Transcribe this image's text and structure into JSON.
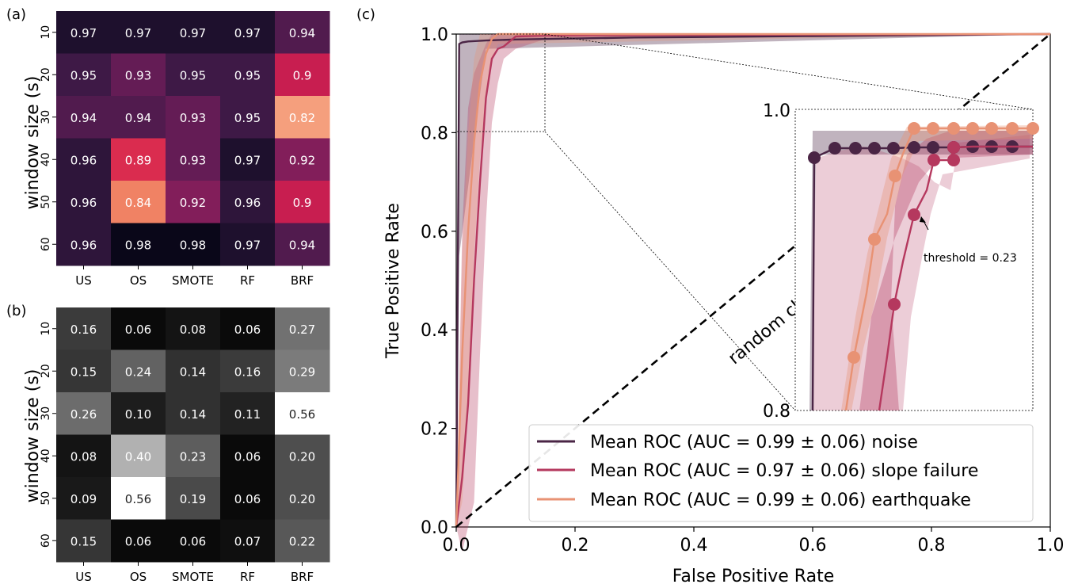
{
  "panels": {
    "a": {
      "label": "(a)",
      "ylabel": "window size (s)",
      "columns": [
        "US",
        "OS",
        "SMOTE",
        "RF",
        "BRF"
      ],
      "rows": [
        "10",
        "20",
        "30",
        "40",
        "50",
        "60"
      ],
      "values": [
        [
          0.97,
          0.97,
          0.97,
          0.97,
          0.94
        ],
        [
          0.95,
          0.93,
          0.95,
          0.95,
          0.9
        ],
        [
          0.94,
          0.94,
          0.93,
          0.95,
          0.82
        ],
        [
          0.96,
          0.89,
          0.93,
          0.97,
          0.92
        ],
        [
          0.96,
          0.84,
          0.92,
          0.96,
          0.9
        ],
        [
          0.96,
          0.98,
          0.98,
          0.97,
          0.94
        ]
      ]
    },
    "b": {
      "label": "(b)",
      "ylabel": "window size (s)",
      "columns": [
        "US",
        "OS",
        "SMOTE",
        "RF",
        "BRF"
      ],
      "rows": [
        "10",
        "20",
        "30",
        "40",
        "50",
        "60"
      ],
      "values": [
        [
          "0.16",
          "0.06",
          "0.08",
          "0.06",
          "0.27"
        ],
        [
          "0.15",
          "0.24",
          "0.14",
          "0.16",
          "0.29"
        ],
        [
          "0.26",
          "0.10",
          "0.14",
          "0.11",
          "0.56"
        ],
        [
          "0.08",
          "0.40",
          "0.23",
          "0.06",
          "0.20"
        ],
        [
          "0.09",
          "0.56",
          "0.19",
          "0.06",
          "0.20"
        ],
        [
          "0.15",
          "0.06",
          "0.06",
          "0.07",
          "0.22"
        ]
      ]
    },
    "c": {
      "label": "(c)",
      "xlabel": "False Positive Rate",
      "ylabel": "True Positive Rate",
      "xticks": [
        "0.0",
        "0.2",
        "0.4",
        "0.6",
        "0.8",
        "1.0"
      ],
      "yticks": [
        "0.0",
        "0.2",
        "0.4",
        "0.6",
        "0.8",
        "1.0"
      ],
      "diagonal_label": "random classifier",
      "inset_yticks": [
        "1.0",
        "0.8"
      ],
      "annotation": "threshold = 0.23",
      "legend": [
        "Mean ROC (AUC = 0.99 ± 0.06) noise",
        "Mean ROC (AUC = 0.97 ± 0.06) slope failure",
        "Mean ROC (AUC = 0.99 ± 0.06) earthquake"
      ]
    }
  },
  "colors": {
    "noise": "#4a2545",
    "slope": "#b5385e",
    "quake": "#e89274",
    "grid_text_light": "#ffffff",
    "grid_text_dark": "#222222"
  },
  "chart_data": [
    {
      "type": "heatmap",
      "panel": "a",
      "xlabel": "",
      "ylabel": "window size (s)",
      "x_categories": [
        "US",
        "OS",
        "SMOTE",
        "RF",
        "BRF"
      ],
      "y_categories": [
        "10",
        "20",
        "30",
        "40",
        "50",
        "60"
      ],
      "values": [
        [
          0.97,
          0.97,
          0.97,
          0.97,
          0.94
        ],
        [
          0.95,
          0.93,
          0.95,
          0.95,
          0.9
        ],
        [
          0.94,
          0.94,
          0.93,
          0.95,
          0.82
        ],
        [
          0.96,
          0.89,
          0.93,
          0.97,
          0.92
        ],
        [
          0.96,
          0.84,
          0.92,
          0.96,
          0.9
        ],
        [
          0.96,
          0.98,
          0.98,
          0.97,
          0.94
        ]
      ],
      "colormap": "rocket"
    },
    {
      "type": "heatmap",
      "panel": "b",
      "xlabel": "",
      "ylabel": "window size (s)",
      "x_categories": [
        "US",
        "OS",
        "SMOTE",
        "RF",
        "BRF"
      ],
      "y_categories": [
        "10",
        "20",
        "30",
        "40",
        "50",
        "60"
      ],
      "values": [
        [
          0.16,
          0.06,
          0.08,
          0.06,
          0.27
        ],
        [
          0.15,
          0.24,
          0.14,
          0.16,
          0.29
        ],
        [
          0.26,
          0.1,
          0.14,
          0.11,
          0.56
        ],
        [
          0.08,
          0.4,
          0.23,
          0.06,
          0.2
        ],
        [
          0.09,
          0.56,
          0.19,
          0.06,
          0.2
        ],
        [
          0.15,
          0.06,
          0.06,
          0.07,
          0.22
        ]
      ],
      "colormap": "gray"
    },
    {
      "type": "line",
      "panel": "c",
      "xlabel": "False Positive Rate",
      "ylabel": "True Positive Rate",
      "xlim": [
        0,
        1
      ],
      "ylim": [
        0,
        1
      ],
      "legend_position": "lower-right",
      "series": [
        {
          "name": "Mean ROC (AUC = 0.99 ± 0.06) noise",
          "x": [
            0,
            0.005,
            0.01,
            0.02,
            0.05,
            0.1,
            0.3,
            0.6,
            0.8,
            1.0
          ],
          "y": [
            0,
            0.98,
            0.983,
            0.985,
            0.987,
            0.989,
            0.993,
            0.996,
            0.998,
            1.0
          ]
        },
        {
          "name": "Mean ROC (AUC = 0.97 ± 0.06) slope failure",
          "x": [
            0,
            0.01,
            0.02,
            0.03,
            0.04,
            0.05,
            0.06,
            0.07,
            0.08,
            0.09,
            0.1,
            0.15,
            0.3,
            0.6,
            1.0
          ],
          "y": [
            0,
            0.1,
            0.25,
            0.5,
            0.7,
            0.87,
            0.95,
            0.97,
            0.975,
            0.985,
            0.995,
            0.997,
            0.998,
            0.999,
            1.0
          ]
        },
        {
          "name": "Mean ROC (AUC = 0.99 ± 0.06) earthquake",
          "x": [
            0,
            0.01,
            0.02,
            0.03,
            0.04,
            0.05,
            0.06,
            0.07,
            0.1,
            0.3,
            0.6,
            1.0
          ],
          "y": [
            0,
            0.35,
            0.6,
            0.78,
            0.9,
            0.96,
            0.99,
            1.0,
            1.0,
            1.0,
            1.0,
            1.0
          ]
        },
        {
          "name": "",
          "x": [
            0,
            1
          ],
          "y": [
            0,
            1
          ]
        }
      ],
      "inset": {
        "xlim": [
          0,
          0.15
        ],
        "ylim": [
          0.8,
          1.0
        ],
        "series": [
          {
            "x": [
              0,
              0.01,
              0.02,
              0.03,
              0.04,
              0.05,
              0.06,
              0.07,
              0.08,
              0.09,
              0.1,
              0.11,
              0.12,
              0.13
            ],
            "y": [
              0.984,
              0.986,
              0.986,
              0.986,
              0.986,
              0.986,
              0.987,
              0.987,
              0.987,
              0.987,
              0.987,
              0.987,
              0.987,
              0.987
            ]
          },
          {
            "x": [
              0.05,
              0.06,
              0.065,
              0.07,
              0.08,
              0.09,
              0.1,
              0.11,
              0.12,
              0.13
            ],
            "y": [
              0.845,
              0.932,
              0.955,
              0.975,
              0.975,
              0.985,
              0.985,
              0.985,
              0.985,
              0.985
            ]
          },
          {
            "x": [
              0.025,
              0.035,
              0.045,
              0.05,
              0.06,
              0.07,
              0.08,
              0.09,
              0.1,
              0.11,
              0.12,
              0.13
            ],
            "y": [
              0.87,
              0.94,
              0.97,
              0.99,
              0.99,
              0.99,
              0.99,
              0.99,
              0.99,
              0.99,
              0.99,
              0.99
            ]
          }
        ]
      }
    }
  ]
}
